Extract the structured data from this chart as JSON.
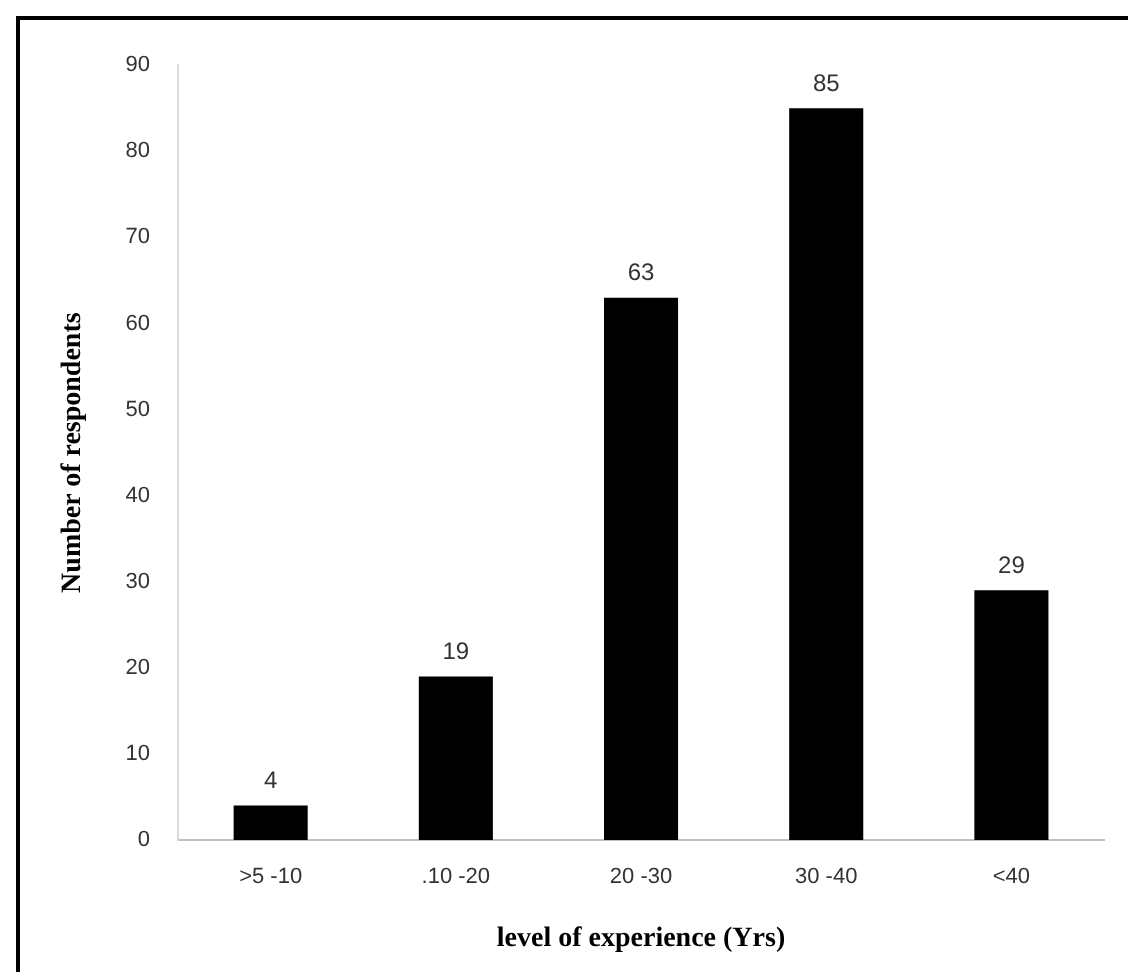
{
  "chart_data": {
    "type": "bar",
    "xlabel": "level of experience (Yrs)",
    "ylabel": "Number of respondents",
    "categories": [
      ">5 -10",
      ".10 -20",
      "20 -30",
      "30 -40",
      "<40"
    ],
    "values": [
      4,
      19,
      63,
      85,
      29
    ],
    "color": "#000000",
    "ylim": [
      0,
      90
    ],
    "yticks": [
      0,
      10,
      20,
      30,
      40,
      50,
      60,
      70,
      80,
      90
    ],
    "grid": false,
    "legend": false,
    "data_labels": true
  }
}
